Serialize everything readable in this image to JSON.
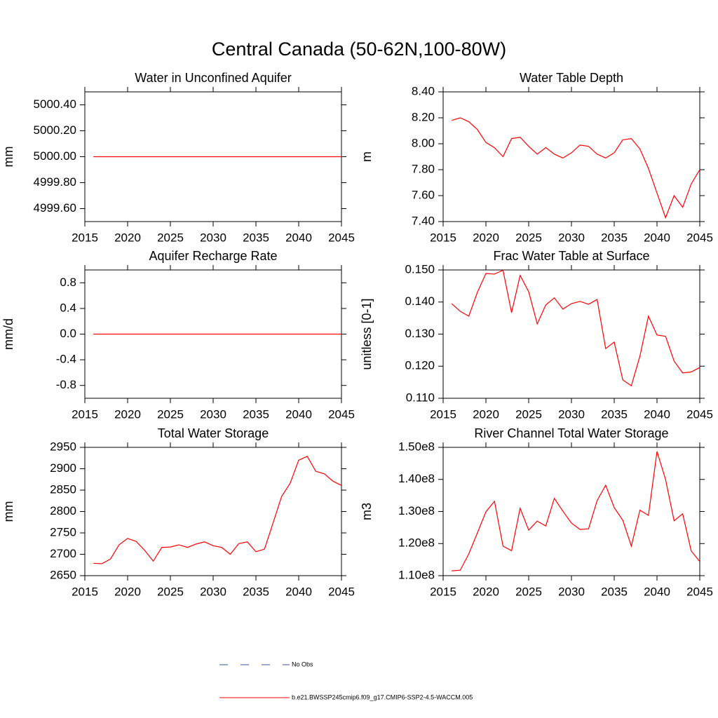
{
  "title": "Central Canada (50-62N,100-80W)",
  "legend": [
    {
      "name": "No Obs",
      "color": "#3b4fa0",
      "dashed": true
    },
    {
      "name": "b.e21.BWSSP245cmip6.f09_g17.CMIP6-SSP2-4.5-WACCM.005",
      "color": "#ff0000",
      "dashed": false
    }
  ],
  "chart_data": [
    {
      "type": "line",
      "title": "Water in Unconfined Aquifer",
      "y_label": "mm",
      "color": "#ff0000",
      "x": [
        2016,
        2017,
        2018,
        2019,
        2020,
        2021,
        2022,
        2023,
        2024,
        2025,
        2026,
        2027,
        2028,
        2029,
        2030,
        2031,
        2032,
        2033,
        2034,
        2035,
        2036,
        2037,
        2038,
        2039,
        2040,
        2041,
        2042,
        2043,
        2044,
        2045
      ],
      "values": [
        5000,
        5000,
        5000,
        5000,
        5000,
        5000,
        5000,
        5000,
        5000,
        5000,
        5000,
        5000,
        5000,
        5000,
        5000,
        5000,
        5000,
        5000,
        5000,
        5000,
        5000,
        5000,
        5000,
        5000,
        5000,
        5000,
        5000,
        5000,
        5000,
        5000
      ],
      "xlim": [
        2015,
        2045
      ],
      "xticks": [
        2015,
        2020,
        2025,
        2030,
        2035,
        2040,
        2045
      ],
      "ylim": [
        4999.5,
        5000.5
      ],
      "yticks": [
        {
          "value": 4999.6,
          "label": "4999.60"
        },
        {
          "value": 4999.8,
          "label": "4999.80"
        },
        {
          "value": 5000,
          "label": "5000.00"
        },
        {
          "value": 5000.2,
          "label": "5000.20"
        },
        {
          "value": 5000.4,
          "label": "5000.40"
        }
      ]
    },
    {
      "type": "line",
      "title": "Water Table Depth",
      "y_label": "m",
      "color": "#ff0000",
      "x": [
        2016,
        2017,
        2018,
        2019,
        2020,
        2021,
        2022,
        2023,
        2024,
        2025,
        2026,
        2027,
        2028,
        2029,
        2030,
        2031,
        2032,
        2033,
        2034,
        2035,
        2036,
        2037,
        2038,
        2039,
        2040,
        2041,
        2042,
        2043,
        2044,
        2045
      ],
      "values": [
        8.18,
        8.2,
        8.17,
        8.11,
        8.01,
        7.97,
        7.9,
        8.04,
        8.05,
        7.98,
        7.92,
        7.97,
        7.92,
        7.89,
        7.93,
        7.99,
        7.98,
        7.92,
        7.89,
        7.93,
        8.03,
        8.04,
        7.96,
        7.81,
        7.62,
        7.43,
        7.6,
        7.51,
        7.69,
        7.8
      ],
      "xlim": [
        2015,
        2045
      ],
      "xticks": [
        2015,
        2020,
        2025,
        2030,
        2035,
        2040,
        2045
      ],
      "ylim": [
        7.4,
        8.4
      ],
      "yticks": [
        {
          "value": 7.4,
          "label": "7.40"
        },
        {
          "value": 7.6,
          "label": "7.60"
        },
        {
          "value": 7.8,
          "label": "7.80"
        },
        {
          "value": 8,
          "label": "8.00"
        },
        {
          "value": 8.2,
          "label": "8.20"
        },
        {
          "value": 8.4,
          "label": "8.40"
        }
      ]
    },
    {
      "type": "line",
      "title": "Aquifer Recharge Rate",
      "y_label": "mm/d",
      "color": "#ff0000",
      "x": [
        2016,
        2017,
        2018,
        2019,
        2020,
        2021,
        2022,
        2023,
        2024,
        2025,
        2026,
        2027,
        2028,
        2029,
        2030,
        2031,
        2032,
        2033,
        2034,
        2035,
        2036,
        2037,
        2038,
        2039,
        2040,
        2041,
        2042,
        2043,
        2044,
        2045
      ],
      "values": [
        0,
        0,
        0,
        0,
        0,
        0,
        0,
        0,
        0,
        0,
        0,
        0,
        0,
        0,
        0,
        0,
        0,
        0,
        0,
        0,
        0,
        0,
        0,
        0,
        0,
        0,
        0,
        0,
        0,
        0
      ],
      "xlim": [
        2015,
        2045
      ],
      "xticks": [
        2015,
        2020,
        2025,
        2030,
        2035,
        2040,
        2045
      ],
      "ylim": [
        -1,
        1
      ],
      "yticks": [
        {
          "value": -0.8,
          "label": "-0.8"
        },
        {
          "value": -0.4,
          "label": "-0.4"
        },
        {
          "value": 0,
          "label": "0.0"
        },
        {
          "value": 0.4,
          "label": "0.4"
        },
        {
          "value": 0.8,
          "label": "0.8"
        }
      ]
    },
    {
      "type": "line",
      "title": "Frac Water Table at Surface",
      "y_label": "unitless [0-1]",
      "color": "#ff0000",
      "x": [
        2016,
        2017,
        2018,
        2019,
        2020,
        2021,
        2022,
        2023,
        2024,
        2025,
        2026,
        2027,
        2028,
        2029,
        2030,
        2031,
        2032,
        2033,
        2034,
        2035,
        2036,
        2037,
        2038,
        2039,
        2040,
        2041,
        2042,
        2043,
        2044,
        2045
      ],
      "values": [
        0.1395,
        0.1371,
        0.1356,
        0.143,
        0.1489,
        0.1487,
        0.1499,
        0.1367,
        0.1483,
        0.1432,
        0.1332,
        0.1391,
        0.1413,
        0.1378,
        0.1395,
        0.1402,
        0.1393,
        0.1408,
        0.1255,
        0.1275,
        0.1157,
        0.1139,
        0.1231,
        0.1356,
        0.1297,
        0.1293,
        0.1216,
        0.1179,
        0.1182,
        0.1196
      ],
      "xlim": [
        2015,
        2045
      ],
      "xticks": [
        2015,
        2020,
        2025,
        2030,
        2035,
        2040,
        2045
      ],
      "ylim": [
        0.11,
        0.15
      ],
      "yticks": [
        {
          "value": 0.11,
          "label": "0.110"
        },
        {
          "value": 0.12,
          "label": "0.120"
        },
        {
          "value": 0.13,
          "label": "0.130"
        },
        {
          "value": 0.14,
          "label": "0.140"
        },
        {
          "value": 0.15,
          "label": "0.150"
        }
      ]
    },
    {
      "type": "line",
      "title": "Total Water Storage",
      "y_label": "mm",
      "color": "#ff0000",
      "x": [
        2016,
        2017,
        2018,
        2019,
        2020,
        2021,
        2022,
        2023,
        2024,
        2025,
        2026,
        2027,
        2028,
        2029,
        2030,
        2031,
        2032,
        2033,
        2034,
        2035,
        2036,
        2037,
        2038,
        2039,
        2040,
        2041,
        2042,
        2043,
        2044,
        2045
      ],
      "values": [
        2679,
        2678,
        2689,
        2722,
        2737,
        2730,
        2709,
        2684,
        2716,
        2717,
        2722,
        2716,
        2724,
        2729,
        2720,
        2716,
        2700,
        2725,
        2729,
        2706,
        2712,
        2773,
        2835,
        2866,
        2920,
        2929,
        2894,
        2888,
        2871,
        2861
      ],
      "xlim": [
        2015,
        2045
      ],
      "xticks": [
        2015,
        2020,
        2025,
        2030,
        2035,
        2040,
        2045
      ],
      "ylim": [
        2650,
        2950
      ],
      "yticks": [
        2650,
        2700,
        2750,
        2800,
        2850,
        2900,
        2950
      ]
    },
    {
      "type": "line",
      "title": "River Channel Total Water Storage",
      "y_label": "m3",
      "color": "#ff0000",
      "x": [
        2016,
        2017,
        2018,
        2019,
        2020,
        2021,
        2022,
        2023,
        2024,
        2025,
        2026,
        2027,
        2028,
        2029,
        2030,
        2031,
        2032,
        2033,
        2034,
        2035,
        2036,
        2037,
        2038,
        2039,
        2040,
        2041,
        2042,
        2043,
        2044,
        2045
      ],
      "values": [
        111500000,
        111700000,
        116800000,
        123300000,
        129900000,
        133200000,
        119200000,
        117800000,
        131000000,
        124200000,
        127000000,
        125500000,
        134100000,
        130100000,
        126400000,
        124400000,
        124600000,
        133400000,
        138200000,
        131200000,
        127300000,
        119200000,
        130400000,
        128800000,
        148700000,
        140000000,
        127100000,
        129300000,
        117700000,
        114400000
      ],
      "xlim": [
        2015,
        2045
      ],
      "xticks": [
        2015,
        2020,
        2025,
        2030,
        2035,
        2040,
        2045
      ],
      "ylim": [
        110000000,
        150000000
      ],
      "yticks": [
        {
          "value": 110000000,
          "label": "1.10e8"
        },
        {
          "value": 120000000,
          "label": "1.20e8"
        },
        {
          "value": 130000000,
          "label": "1.30e8"
        },
        {
          "value": 140000000,
          "label": "1.40e8"
        },
        {
          "value": 150000000,
          "label": "1.50e8"
        }
      ]
    }
  ]
}
